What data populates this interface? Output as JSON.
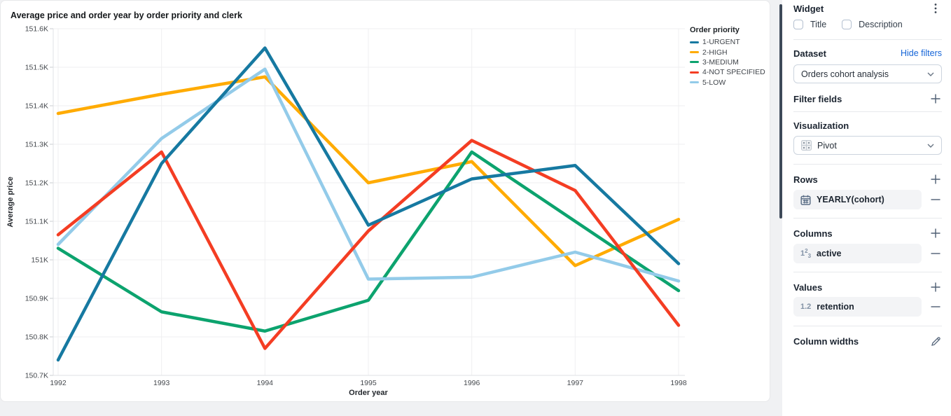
{
  "chart": {
    "title": "Average price and order year by order priority and clerk",
    "legend_title": "Order priority"
  },
  "chart_data": {
    "type": "line",
    "x": [
      1992,
      1993,
      1994,
      1995,
      1996,
      1997,
      1998
    ],
    "xlabel": "Order year",
    "ylabel": "Average price",
    "y_unit": "K",
    "ylim": [
      150.7,
      151.6
    ],
    "ytick_step": 0.1,
    "grid": true,
    "legend_position": "top-right",
    "series": [
      {
        "name": "1-URGENT",
        "color": "#1679A1",
        "values": [
          150.74,
          151.25,
          151.55,
          151.09,
          151.21,
          151.245,
          150.99
        ]
      },
      {
        "name": "2-HIGH",
        "color": "#FFAB00",
        "values": [
          151.38,
          151.43,
          151.475,
          151.2,
          151.255,
          150.985,
          151.105
        ]
      },
      {
        "name": "3-MEDIUM",
        "color": "#0CA36E",
        "values": [
          151.03,
          150.865,
          150.815,
          150.895,
          151.28,
          151.1,
          150.92
        ]
      },
      {
        "name": "4-NOT SPECIFIED",
        "color": "#F43D23",
        "values": [
          151.065,
          151.28,
          150.77,
          151.075,
          151.31,
          151.18,
          150.83
        ]
      },
      {
        "name": "5-LOW",
        "color": "#93CBE9",
        "values": [
          151.04,
          151.315,
          151.495,
          150.95,
          150.955,
          151.02,
          150.945
        ]
      }
    ],
    "draw_order": [
      1,
      2,
      4,
      3,
      0
    ]
  },
  "panel": {
    "title": "Widget",
    "checkboxes": [
      {
        "label": "Title",
        "checked": false
      },
      {
        "label": "Description",
        "checked": false
      }
    ],
    "dataset": {
      "label": "Dataset",
      "link": "Hide filters",
      "selected": "Orders cohort analysis"
    },
    "filter_fields": {
      "label": "Filter fields"
    },
    "visualization": {
      "label": "Visualization",
      "selected": "Pivot"
    },
    "rows": {
      "label": "Rows",
      "items": [
        {
          "label": "YEARLY(cohort)"
        }
      ]
    },
    "columns": {
      "label": "Columns",
      "items": [
        {
          "label": "active",
          "icon_sup": "2",
          "icon_sub": "3",
          "icon_main": "1"
        }
      ]
    },
    "values": {
      "label": "Values",
      "items": [
        {
          "label": "retention",
          "icon_text": "1.2"
        }
      ]
    },
    "column_widths": {
      "label": "Column widths"
    }
  },
  "colors": {
    "accent_link": "#1565d8",
    "chip_bg": "#f3f4f6",
    "scrollbar": "#3e4a59",
    "gridline": "#efeff1",
    "axis": "#dfe1e4"
  }
}
